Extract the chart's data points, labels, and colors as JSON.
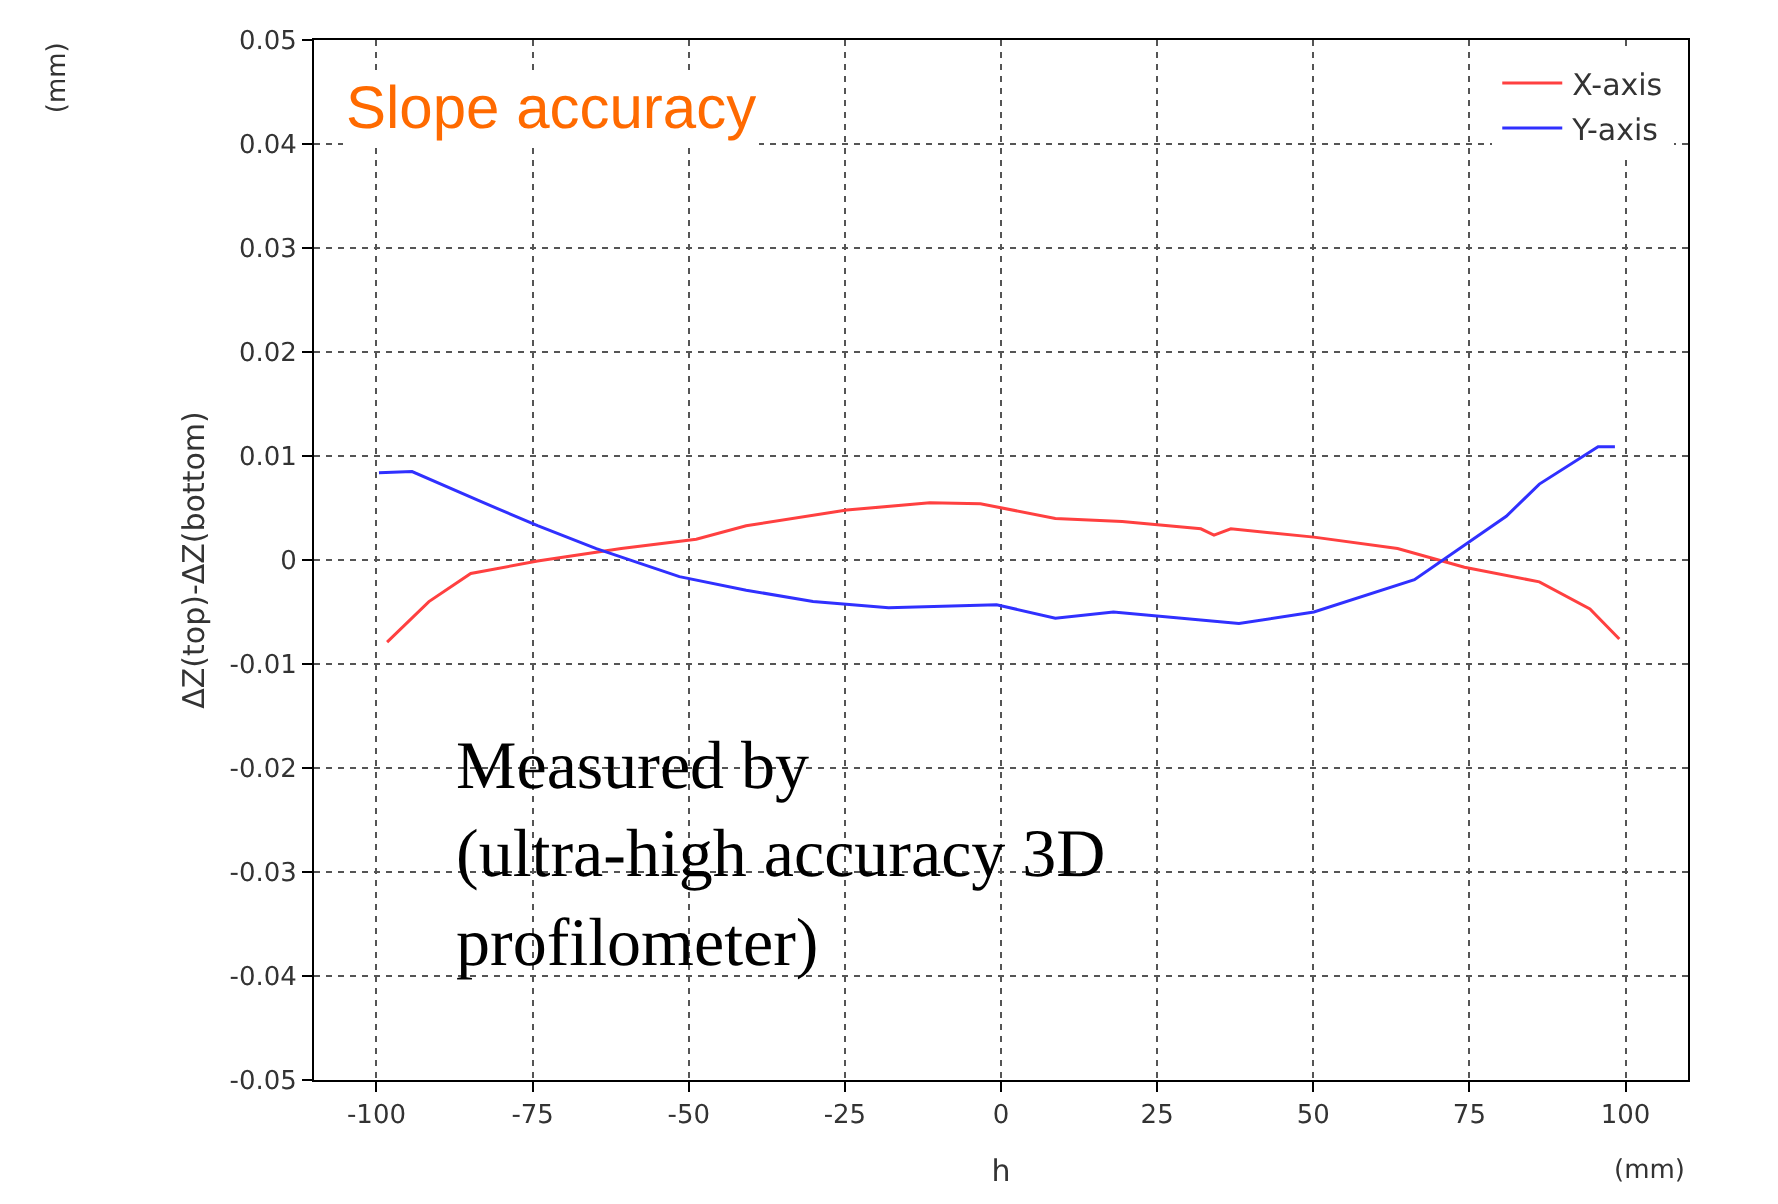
{
  "chart_data": {
    "type": "line",
    "xlabel": "h",
    "ylabel": "ΔZ(top)-ΔZ(bottom)",
    "annotations": [
      "Slope accuracy",
      "Measured by\n(ultra-high accuracy 3D\nprofilometer)",
      "(mm)",
      "(mm)"
    ],
    "xlim": [
      -110,
      110
    ],
    "xticks": [
      -100,
      -75,
      -50,
      -25,
      0,
      25,
      50,
      75,
      100
    ],
    "ylim": [
      -0.05,
      0.05
    ],
    "yticks": [
      -0.05,
      -0.04,
      -0.03,
      -0.02,
      -0.01,
      0,
      0.01,
      0.02,
      0.03,
      0.04,
      0.05
    ],
    "grid": true,
    "legend": "top right",
    "line_style": "solid",
    "marker": "none",
    "series": [
      {
        "name": "X-axis",
        "color": "#ff4040",
        "x": [
          -98.3,
          -91.6,
          -84.9,
          -74.2,
          -60.8,
          -48.8,
          -40.8,
          -24.7,
          -11.4,
          -3.3,
          8.7,
          19.4,
          32,
          34.1,
          36.8,
          50.1,
          63.5,
          74.2,
          86.2,
          94.3,
          99
        ],
        "values": [
          -0.0079,
          -0.004,
          -0.0013,
          -0.0001,
          0.0011,
          0.002,
          0.0033,
          0.0048,
          0.0055,
          0.0054,
          0.004,
          0.0037,
          0.003,
          0.0024,
          0.003,
          0.0022,
          0.0011,
          -0.0007,
          -0.0021,
          -0.0047,
          -0.0076
        ]
      },
      {
        "name": "Y-axis",
        "color": "#3030ff",
        "x": [
          -99.6,
          -94.3,
          -83.6,
          -74.2,
          -64.8,
          -51.5,
          -40.8,
          -30.1,
          -18,
          -0.7,
          8.7,
          18,
          38.1,
          50.1,
          66.2,
          80.9,
          86.2,
          95.6,
          98.3
        ],
        "values": [
          0.0084,
          0.0085,
          0.0057,
          0.0033,
          0.0011,
          -0.0016,
          -0.0029,
          -0.004,
          -0.0046,
          -0.0043,
          -0.0056,
          -0.005,
          -0.0061,
          -0.005,
          -0.0019,
          0.0042,
          0.0073,
          0.0109,
          0.0109
        ]
      }
    ]
  }
}
